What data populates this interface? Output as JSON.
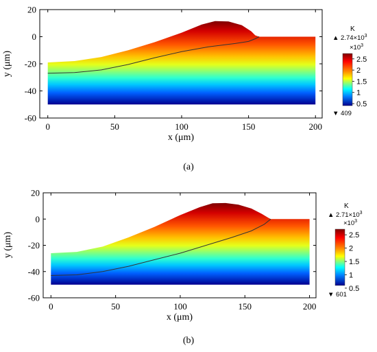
{
  "chart_data": [
    {
      "type": "heatmap",
      "caption": "(a)",
      "xlabel": "x (μm)",
      "ylabel": "y (μm)",
      "xlim": [
        -6,
        205
      ],
      "ylim": [
        -60,
        20
      ],
      "xticks": [
        "0",
        "50",
        "100",
        "150",
        "200"
      ],
      "yticks": [
        "20",
        "0",
        "-20",
        "-40",
        "-60"
      ],
      "xtick_values": [
        0,
        50,
        100,
        150,
        200
      ],
      "ytick_values": [
        20,
        0,
        -20,
        -40,
        -60
      ],
      "domain": {
        "x": [
          0,
          200
        ],
        "y_bottom": -50
      },
      "top_surface": [
        [
          0,
          -19
        ],
        [
          20,
          -18
        ],
        [
          40,
          -15
        ],
        [
          60,
          -10
        ],
        [
          80,
          -4
        ],
        [
          100,
          3
        ],
        [
          115,
          9
        ],
        [
          125,
          11.5
        ],
        [
          135,
          11.3
        ],
        [
          145,
          8.5
        ],
        [
          152,
          4
        ],
        [
          155,
          1
        ],
        [
          158,
          0
        ],
        [
          200,
          0
        ]
      ],
      "melt_boundary": [
        [
          0,
          -27
        ],
        [
          20,
          -26.5
        ],
        [
          40,
          -24.5
        ],
        [
          60,
          -20.5
        ],
        [
          80,
          -15.5
        ],
        [
          100,
          -11
        ],
        [
          120,
          -7.5
        ],
        [
          140,
          -5
        ],
        [
          150,
          -3.5
        ],
        [
          155,
          -1.5
        ],
        [
          158,
          0
        ]
      ],
      "colorbar": {
        "unit": "K",
        "max_label": "▲ 2.74×10",
        "max_exp": "3",
        "scale_label": "×10",
        "scale_exp": "3",
        "min_label": "▼ 409",
        "tick_labels": [
          "2.5",
          "2",
          "1.5",
          "1",
          "0.5"
        ],
        "tick_values": [
          2.5,
          2,
          1.5,
          1,
          0.5
        ],
        "range": [
          0.409,
          2.74
        ]
      }
    },
    {
      "type": "heatmap",
      "caption": "(b)",
      "xlabel": "x (μm)",
      "ylabel": "y (μm)",
      "xlim": [
        -6,
        205
      ],
      "ylim": [
        -60,
        20
      ],
      "xticks": [
        "0",
        "50",
        "100",
        "150",
        "200"
      ],
      "yticks": [
        "20",
        "0",
        "-20",
        "-40",
        "-60"
      ],
      "xtick_values": [
        0,
        50,
        100,
        150,
        200
      ],
      "ytick_values": [
        20,
        0,
        -20,
        -40,
        -60
      ],
      "domain": {
        "x": [
          0,
          200
        ],
        "y_bottom": -50
      },
      "top_surface": [
        [
          0,
          -26
        ],
        [
          20,
          -25
        ],
        [
          40,
          -21
        ],
        [
          60,
          -14
        ],
        [
          80,
          -6
        ],
        [
          100,
          3
        ],
        [
          115,
          9
        ],
        [
          125,
          12
        ],
        [
          135,
          12.2
        ],
        [
          145,
          11
        ],
        [
          155,
          8
        ],
        [
          163,
          4
        ],
        [
          168,
          1
        ],
        [
          170,
          0
        ],
        [
          200,
          0
        ]
      ],
      "melt_boundary": [
        [
          0,
          -43
        ],
        [
          20,
          -42.5
        ],
        [
          40,
          -40
        ],
        [
          60,
          -36
        ],
        [
          80,
          -31
        ],
        [
          100,
          -26
        ],
        [
          120,
          -20
        ],
        [
          140,
          -14
        ],
        [
          155,
          -9
        ],
        [
          165,
          -4
        ],
        [
          170,
          0
        ]
      ],
      "colorbar": {
        "unit": "K",
        "max_label": "▲ 2.71×10",
        "max_exp": "3",
        "scale_label": "×10",
        "scale_exp": "3",
        "min_label": "▼ 601",
        "tick_labels": [
          "2.5",
          "2",
          "1.5",
          "1",
          "0.5"
        ],
        "tick_values": [
          2.5,
          2,
          1.5,
          1,
          0.5
        ],
        "range": [
          0.601,
          2.71
        ]
      }
    }
  ]
}
